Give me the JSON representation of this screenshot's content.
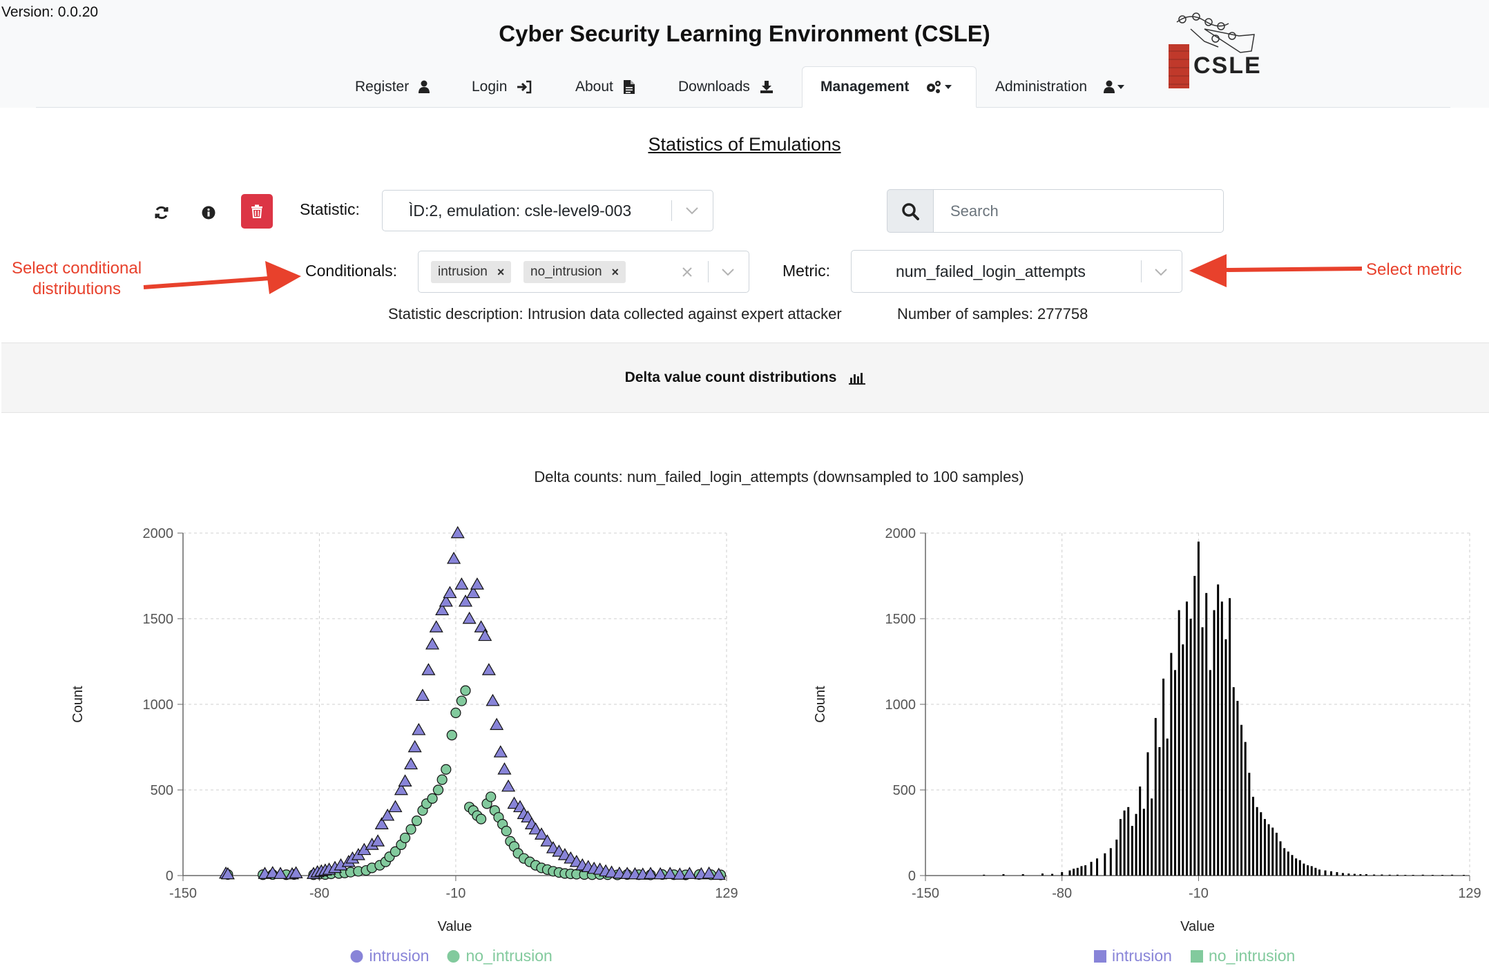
{
  "version": "Version: 0.0.20",
  "header": {
    "title": "Cyber Security Learning Environment (CSLE)",
    "logo_text": "CSLE"
  },
  "nav": {
    "register": "Register",
    "login": "Login",
    "about": "About",
    "downloads": "Downloads",
    "management": "Management",
    "administration": "Administration"
  },
  "page": {
    "title": "Statistics of Emulations"
  },
  "controls": {
    "statistic_label": "Statistic:",
    "statistic_value": "ÌD:2, emulation: csle-level9-003",
    "search_placeholder": "Search",
    "conditionals_label": "Conditionals:",
    "conditionals": [
      "intrusion",
      "no_intrusion"
    ],
    "tag_remove": "×",
    "metric_label": "Metric:",
    "metric_value": "num_failed_login_attempts"
  },
  "info": {
    "description": "Statistic description: Intrusion data collected against expert attacker",
    "samples": "Number of samples: 277758"
  },
  "annotations": {
    "left_line1": "Select conditional",
    "left_line2": "distributions",
    "right": "Select metric"
  },
  "colors": {
    "intrusion": "#8884d8",
    "no_intrusion": "#82ca9d",
    "annotation": "#e8412c",
    "danger": "#dc3545"
  },
  "section": {
    "header": "Delta value count distributions"
  },
  "plot_title": "Delta counts: num_failed_login_attempts (downsampled to 100 samples)",
  "chart_data": [
    {
      "type": "scatter",
      "xlabel": "Value",
      "ylabel": "Count",
      "xlim": [
        -150,
        129
      ],
      "ylim": [
        0,
        2000
      ],
      "xticks": [
        -150,
        -80,
        -10,
        129
      ],
      "yticks": [
        0,
        500,
        1000,
        1500,
        2000
      ],
      "grid": true,
      "legend_placement": "bottom",
      "series": [
        {
          "name": "intrusion",
          "marker": "triangle",
          "x": [
            -128,
            -127,
            -108,
            -104,
            -100,
            -94,
            -92,
            -83,
            -81,
            -79,
            -77,
            -75,
            -72,
            -69,
            -65,
            -63,
            -60,
            -57,
            -53,
            -50,
            -48,
            -45,
            -41,
            -38,
            -36,
            -33,
            -31,
            -29,
            -27,
            -24,
            -22,
            -20,
            -17,
            -15,
            -13,
            -11,
            -9,
            -7,
            -5,
            -3,
            -1,
            1,
            3,
            5,
            7,
            9,
            11,
            13,
            15,
            17,
            20,
            23,
            25,
            27,
            29,
            31,
            34,
            37,
            40,
            43,
            46,
            49,
            52,
            55,
            58,
            61,
            64,
            67,
            70,
            74,
            78,
            82,
            86,
            90,
            95,
            100,
            105,
            110,
            116,
            120,
            125
          ],
          "y": [
            12,
            8,
            10,
            15,
            10,
            8,
            14,
            10,
            20,
            25,
            30,
            35,
            45,
            60,
            80,
            100,
            120,
            150,
            180,
            200,
            300,
            350,
            400,
            500,
            550,
            650,
            750,
            850,
            1050,
            1200,
            1350,
            1450,
            1550,
            1600,
            1650,
            1850,
            2000,
            1700,
            1600,
            1500,
            1650,
            1700,
            1450,
            1400,
            1200,
            1020,
            880,
            720,
            620,
            520,
            420,
            400,
            360,
            340,
            300,
            270,
            240,
            200,
            160,
            140,
            120,
            100,
            80,
            60,
            50,
            40,
            35,
            25,
            18,
            12,
            10,
            8,
            6,
            10,
            8,
            10,
            6,
            10,
            8,
            12,
            5
          ]
        },
        {
          "name": "no_intrusion",
          "marker": "circle",
          "x": [
            -127,
            -109,
            -104,
            -97,
            -93,
            -83,
            -80,
            -77,
            -74,
            -70,
            -67,
            -64,
            -60,
            -56,
            -53,
            -49,
            -46,
            -44,
            -41,
            -38,
            -36,
            -33,
            -30,
            -27,
            -25,
            -22,
            -19,
            -17,
            -15,
            -12,
            -10,
            -7,
            -5,
            -3,
            -1,
            1,
            3,
            6,
            8,
            10,
            12,
            14,
            16,
            18,
            20,
            22,
            25,
            28,
            31,
            34,
            37,
            40,
            43,
            46,
            49,
            52,
            56,
            60,
            64,
            68,
            73,
            78,
            84,
            90,
            96,
            102,
            108,
            115,
            121,
            126
          ],
          "y": [
            6,
            5,
            6,
            5,
            6,
            5,
            8,
            6,
            10,
            12,
            15,
            20,
            25,
            30,
            45,
            60,
            80,
            110,
            140,
            180,
            220,
            270,
            320,
            380,
            420,
            450,
            500,
            560,
            620,
            820,
            950,
            1020,
            1080,
            400,
            380,
            350,
            330,
            420,
            460,
            380,
            340,
            300,
            260,
            200,
            170,
            130,
            100,
            80,
            60,
            45,
            35,
            25,
            18,
            12,
            10,
            8,
            6,
            5,
            6,
            5,
            4,
            6,
            5,
            4,
            6,
            5,
            4,
            6,
            5,
            4
          ]
        }
      ]
    },
    {
      "type": "bar",
      "xlabel": "Value",
      "ylabel": "Count",
      "xlim": [
        -150,
        129
      ],
      "ylim": [
        0,
        2000
      ],
      "xticks": [
        -150,
        -80,
        -10,
        129
      ],
      "yticks": [
        0,
        500,
        1000,
        1500,
        2000
      ],
      "grid": true,
      "legend_placement": "bottom",
      "series": [
        {
          "name": "intrusion",
          "x": [
            -120,
            -110,
            -100,
            -90,
            -85,
            -80,
            -76,
            -74,
            -72,
            -70,
            -68,
            -65,
            -62,
            -58,
            -55,
            -52,
            -50,
            -48,
            -46,
            -44,
            -42,
            -40,
            -38,
            -36,
            -34,
            -32,
            -30,
            -28,
            -26,
            -24,
            -22,
            -20,
            -18,
            -16,
            -14,
            -12,
            -10,
            -8,
            -6,
            -4,
            -2,
            0,
            2,
            4,
            6,
            8,
            10,
            12,
            14,
            16,
            18,
            20,
            22,
            24,
            26,
            28,
            30,
            32,
            34,
            36,
            38,
            40,
            42,
            44,
            46,
            48,
            50,
            52,
            55,
            58,
            61,
            64,
            67,
            70,
            73,
            76,
            80,
            84,
            88,
            92,
            96,
            100,
            105,
            110,
            115,
            120,
            126
          ],
          "y": [
            5,
            8,
            8,
            12,
            10,
            20,
            30,
            40,
            45,
            55,
            60,
            80,
            100,
            130,
            160,
            210,
            330,
            380,
            400,
            290,
            360,
            520,
            390,
            720,
            450,
            920,
            750,
            1150,
            800,
            1300,
            1200,
            1550,
            1350,
            1600,
            1500,
            1750,
            1950,
            1450,
            1650,
            1200,
            1550,
            1700,
            1600,
            1380,
            1620,
            1100,
            1020,
            880,
            780,
            600,
            460,
            400,
            370,
            330,
            300,
            280,
            250,
            200,
            160,
            140,
            120,
            100,
            90,
            70,
            60,
            55,
            45,
            35,
            30,
            25,
            20,
            15,
            12,
            10,
            8,
            8,
            6,
            6,
            5,
            5,
            4,
            4,
            5,
            4,
            4,
            5,
            4
          ]
        },
        {
          "name": "no_intrusion",
          "x": [],
          "y": []
        }
      ]
    }
  ]
}
